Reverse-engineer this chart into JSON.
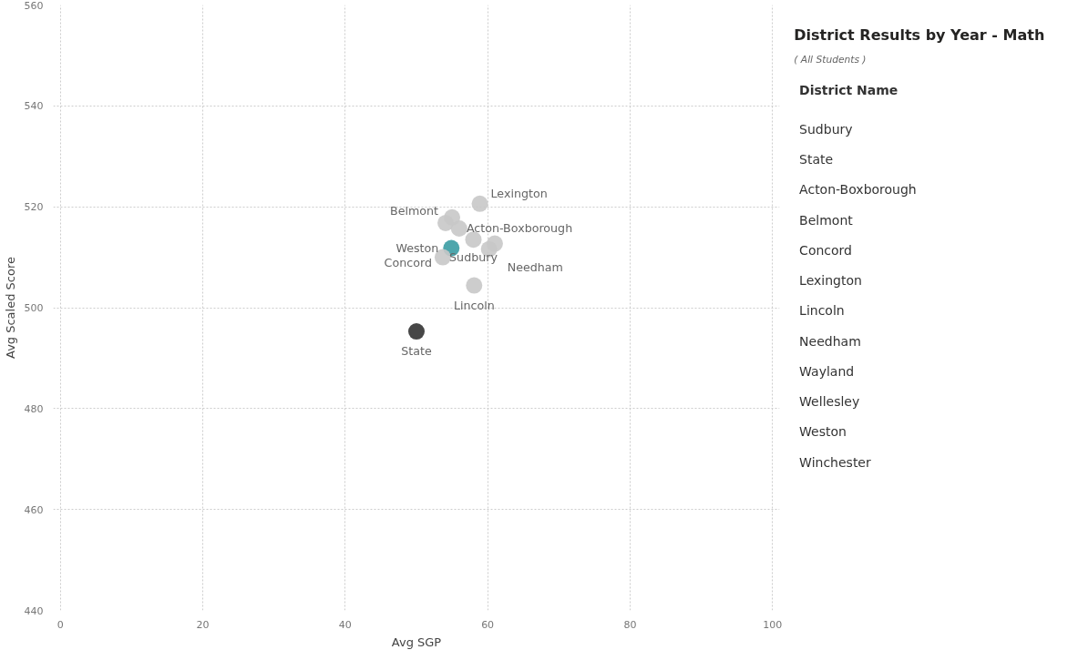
{
  "chart_data": [
    {
      "type": "scatter",
      "xlabel": "Avg SGP",
      "ylabel": "Avg Scaled Score",
      "x": [
        58.9,
        54.1,
        56.0,
        54.9,
        53.7,
        58.0,
        58.1,
        60.2,
        55.0,
        61.0,
        50.0
      ],
      "values": [
        520.6,
        516.8,
        515.7,
        511.8,
        510.0,
        513.5,
        504.4,
        511.6,
        517.9,
        512.7,
        495.3
      ],
      "colors": [
        "#c8c8c8",
        "#c8c8c8",
        "#c8c8c8",
        "#3a9ca3",
        "#c8c8c8",
        "#c8c8c8",
        "#c8c8c8",
        "#c8c8c8",
        "#c8c8c8",
        "#c8c8c8",
        "#333333"
      ],
      "marker": "circle",
      "xlim": [
        -1,
        101
      ],
      "ylim": [
        440,
        560
      ],
      "xticks": [
        0,
        20,
        40,
        60,
        80,
        100
      ],
      "yticks": [
        440,
        460,
        480,
        500,
        520,
        540,
        560
      ],
      "grid": true,
      "annotations": [
        {
          "text": "Lexington",
          "x": 58.9,
          "y": 520.6
        },
        {
          "text": "Belmont",
          "x": 54.1,
          "y": 516.8
        },
        {
          "text": "Acton-Boxborough",
          "x": 56.0,
          "y": 515.7
        },
        {
          "text": "Weston",
          "x": 54.9,
          "y": 511.8
        },
        {
          "text": "Concord",
          "x": 53.7,
          "y": 510.0
        },
        {
          "text": "Sudbury",
          "x": 58.0,
          "y": 513.5
        },
        {
          "text": "Lincoln",
          "x": 58.1,
          "y": 504.4
        },
        {
          "text": "Needham",
          "x": 60.2,
          "y": 511.6
        },
        {
          "text": "State",
          "x": 50.0,
          "y": 495.3
        }
      ]
    },
    {
      "type": "other",
      "title": "District Results by Year - Math",
      "subtitle": "( All Students )",
      "annotations": [
        "District Name",
        "Sudbury",
        "State",
        "Acton-Boxborough",
        "Belmont",
        "Concord",
        "Lexington",
        "Lincoln",
        "Needham",
        "Wayland",
        "Wellesley",
        "Weston",
        "Winchester"
      ]
    }
  ]
}
